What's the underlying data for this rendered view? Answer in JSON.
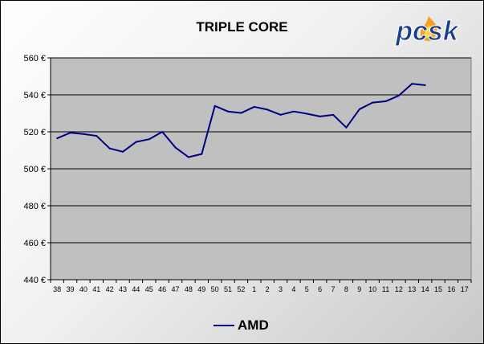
{
  "chart_data": {
    "type": "line",
    "title": "TRIPLE CORE",
    "logo_text": "pcsk",
    "categories": [
      "38",
      "39",
      "40",
      "41",
      "42",
      "43",
      "44",
      "45",
      "46",
      "47",
      "48",
      "49",
      "50",
      "51",
      "52",
      "1",
      "2",
      "3",
      "4",
      "5",
      "6",
      "7",
      "8",
      "9",
      "10",
      "11",
      "12",
      "13",
      "14",
      "15",
      "16",
      "17"
    ],
    "series": [
      {
        "name": "AMD",
        "color": "#000080",
        "values": [
          516.5,
          519.5,
          518.8,
          517.8,
          511,
          509.2,
          514.5,
          516,
          520,
          511.5,
          506.3,
          508,
          534,
          531,
          530.2,
          533.5,
          532,
          529.2,
          531,
          529.8,
          528.3,
          529.2,
          522.3,
          532.2,
          535.8,
          536.5,
          539.6,
          546,
          545.2,
          null,
          null,
          null
        ]
      }
    ],
    "ylim": [
      440,
      560
    ],
    "yticks": [
      440,
      460,
      480,
      500,
      520,
      540,
      560
    ],
    "ytick_labels": [
      "440 €",
      "460 €",
      "480 €",
      "500 €",
      "520 €",
      "540 €",
      "560 €"
    ],
    "grid": true,
    "plot_background": "#c0c0c0",
    "legend_position": "bottom"
  }
}
